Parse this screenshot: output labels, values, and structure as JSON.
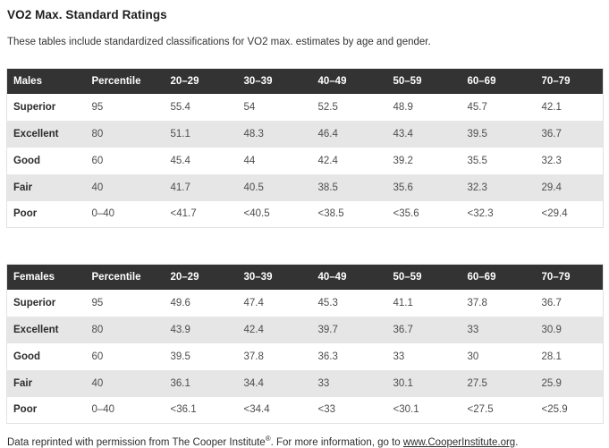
{
  "header": {
    "title": "VO2 Max. Standard Ratings",
    "subtitle": "These tables include standardized classifications for VO2 max. estimates by age and gender."
  },
  "colors": {
    "table_header_bg": "#333333",
    "table_header_text": "#ffffff",
    "row_alt_bg": "#e6e6e6",
    "table_border": "#e2e2e2",
    "label_text": "#2b2b2b",
    "value_text": "#4d4d4d"
  },
  "tables": [
    {
      "name": "males",
      "headers": [
        "Males",
        "Percentile",
        "20–29",
        "30–39",
        "40–49",
        "50–59",
        "60–69",
        "70–79"
      ],
      "rows": [
        [
          "Superior",
          "95",
          "55.4",
          "54",
          "52.5",
          "48.9",
          "45.7",
          "42.1"
        ],
        [
          "Excellent",
          "80",
          "51.1",
          "48.3",
          "46.4",
          "43.4",
          "39.5",
          "36.7"
        ],
        [
          "Good",
          "60",
          "45.4",
          "44",
          "42.4",
          "39.2",
          "35.5",
          "32.3"
        ],
        [
          "Fair",
          "40",
          "41.7",
          "40.5",
          "38.5",
          "35.6",
          "32.3",
          "29.4"
        ],
        [
          "Poor",
          "0–40",
          "<41.7",
          "<40.5",
          "<38.5",
          "<35.6",
          "<32.3",
          "<29.4"
        ]
      ]
    },
    {
      "name": "females",
      "headers": [
        "Females",
        "Percentile",
        "20–29",
        "30–39",
        "40–49",
        "50–59",
        "60–69",
        "70–79"
      ],
      "rows": [
        [
          "Superior",
          "95",
          "49.6",
          "47.4",
          "45.3",
          "41.1",
          "37.8",
          "36.7"
        ],
        [
          "Excellent",
          "80",
          "43.9",
          "42.4",
          "39.7",
          "36.7",
          "33",
          "30.9"
        ],
        [
          "Good",
          "60",
          "39.5",
          "37.8",
          "36.3",
          "33",
          "30",
          "28.1"
        ],
        [
          "Fair",
          "40",
          "36.1",
          "34.4",
          "33",
          "30.1",
          "27.5",
          "25.9"
        ],
        [
          "Poor",
          "0–40",
          "<36.1",
          "<34.4",
          "<33",
          "<30.1",
          "<27.5",
          "<25.9"
        ]
      ]
    }
  ],
  "footer": {
    "text_before": "Data reprinted with permission from The Cooper Institute",
    "registered_symbol": "®",
    "text_middle": ". For more information, go to ",
    "link_text": "www.CooperInstitute.org",
    "text_after": "."
  }
}
